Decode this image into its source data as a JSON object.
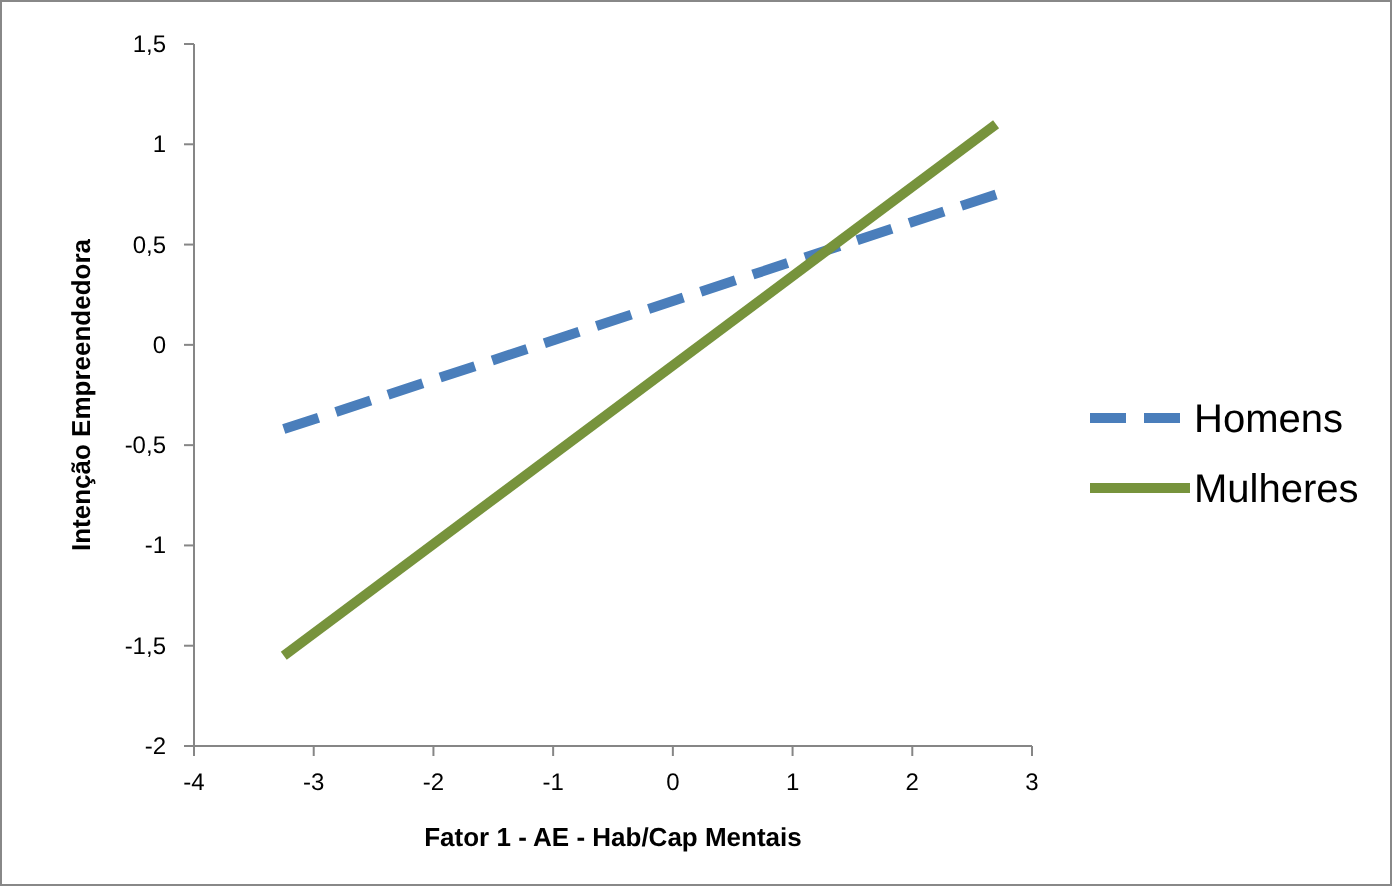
{
  "chart_data": {
    "type": "line",
    "xlabel": "Fator 1 - AE - Hab/Cap Mentais",
    "ylabel": "Intenção Empreendedora",
    "xlim": [
      -4,
      3
    ],
    "xticks": [
      -4,
      -3,
      -2,
      -1,
      0,
      1,
      2,
      3
    ],
    "ylim": [
      -2,
      1.5
    ],
    "yticks": [
      -2,
      {
        "value": -1.5,
        "label": "-1,5"
      },
      -1,
      {
        "value": -0.5,
        "label": "-0,5"
      },
      0,
      {
        "value": 0.5,
        "label": "0,5"
      },
      1,
      {
        "value": 1.5,
        "label": "1,5"
      }
    ],
    "x": [
      -3.25,
      2.7
    ],
    "series": [
      {
        "name": "Homens",
        "color": "#4a7ebb",
        "values": [
          -0.42,
          0.75
        ],
        "line_style": "dashed"
      },
      {
        "name": "Mulheres",
        "color": "#77933c",
        "values": [
          -1.55,
          1.1
        ],
        "line_style": "solid"
      }
    ],
    "grid": false,
    "legend": "right",
    "marker": "none"
  }
}
